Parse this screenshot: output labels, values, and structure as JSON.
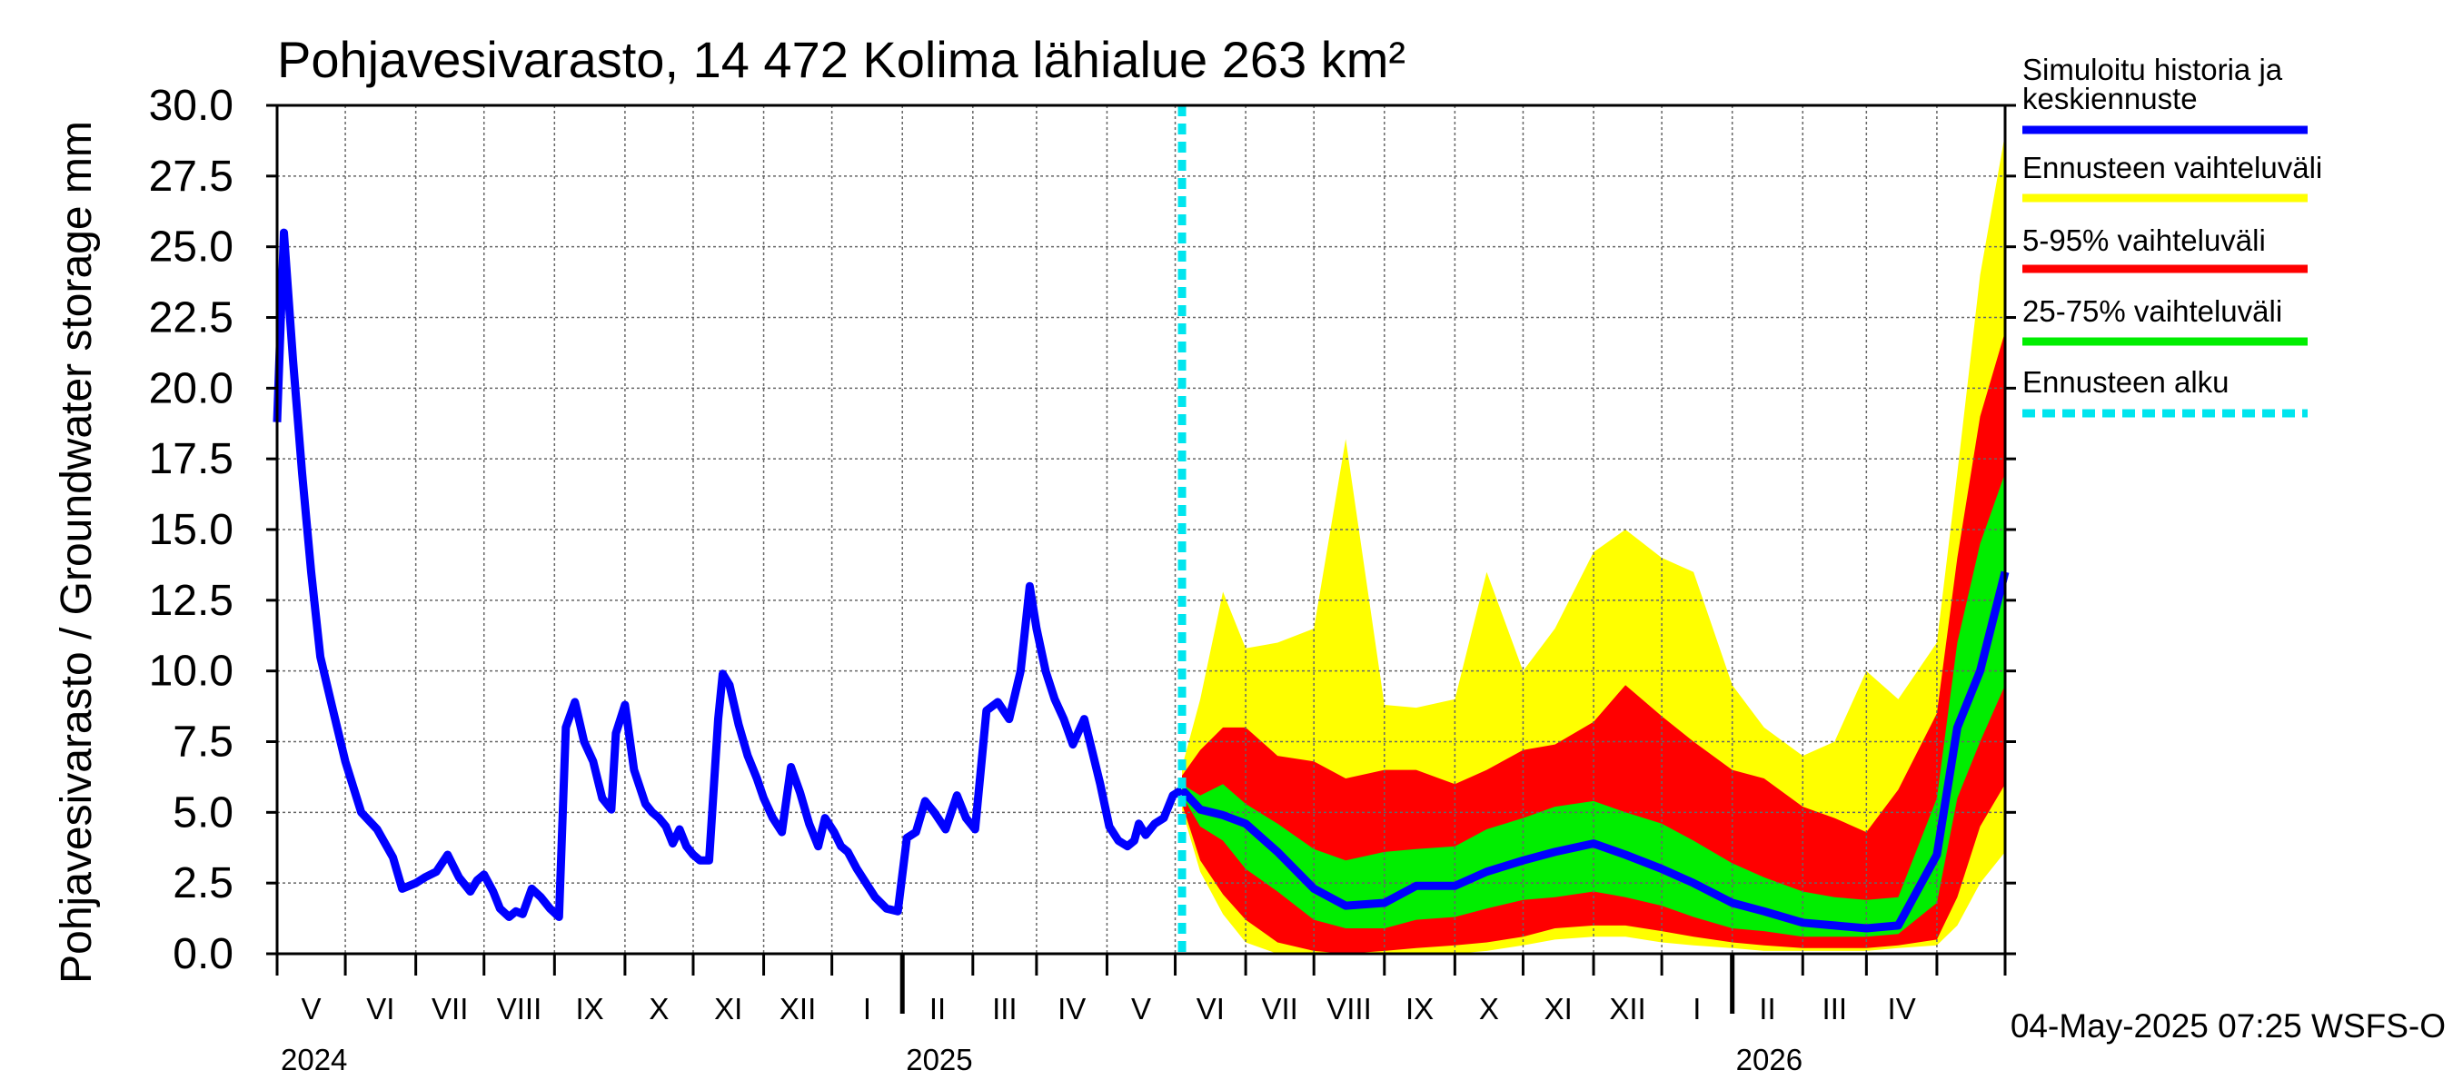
{
  "chart_data": {
    "type": "area",
    "title": "Pohjavesivarasto, 14 472 Kolima lähialue 263 km²",
    "ylabel": "Pohjavesivarasto / Groundwater storage   mm",
    "ylim": [
      0,
      30
    ],
    "yticks": [
      "0.0",
      "2.5",
      "5.0",
      "7.5",
      "10.0",
      "12.5",
      "15.0",
      "17.5",
      "20.0",
      "22.5",
      "25.0",
      "27.5",
      "30.0"
    ],
    "xlim": [
      "2024-04-01",
      "2026-05-01"
    ],
    "month_labels": [
      "V",
      "VI",
      "VII",
      "VIII",
      "IX",
      "X",
      "XI",
      "XII",
      "I",
      "II",
      "III",
      "IV",
      "V",
      "VI",
      "VII",
      "VIII",
      "IX",
      "X",
      "XI",
      "XII",
      "I",
      "II",
      "III",
      "IV"
    ],
    "year_labels": [
      "2024",
      "2025",
      "2026"
    ],
    "forecast_start": "2025-05-04",
    "grid": true,
    "legend_position": "right",
    "legend": [
      {
        "label": "Simuloitu historia ja keskiennuste",
        "color": "#0000ff",
        "style": "solid"
      },
      {
        "label": "Ennusteen vaihteluväli",
        "color": "#ffff00",
        "style": "solid"
      },
      {
        "label": "5-95% vaihteluväli",
        "color": "#ff0000",
        "style": "solid"
      },
      {
        "label": "25-75% vaihteluväli",
        "color": "#00ee00",
        "style": "solid"
      },
      {
        "label": "Ennusteen alku",
        "color": "#00e5ee",
        "style": "dashed"
      }
    ],
    "history": {
      "name": "Simuloitu historia ja keskiennuste",
      "x": [
        "2024-04-01",
        "2024-04-04",
        "2024-04-08",
        "2024-04-12",
        "2024-04-16",
        "2024-04-20",
        "2024-04-25",
        "2024-05-01",
        "2024-05-08",
        "2024-05-15",
        "2024-05-22",
        "2024-05-26",
        "2024-06-01",
        "2024-06-05",
        "2024-06-10",
        "2024-06-15",
        "2024-06-20",
        "2024-06-25",
        "2024-06-28",
        "2024-07-01",
        "2024-07-05",
        "2024-07-08",
        "2024-07-12",
        "2024-07-15",
        "2024-07-18",
        "2024-07-22",
        "2024-07-26",
        "2024-07-30",
        "2024-08-03",
        "2024-08-06",
        "2024-08-10",
        "2024-08-14",
        "2024-08-18",
        "2024-08-22",
        "2024-08-26",
        "2024-08-28",
        "2024-09-01",
        "2024-09-05",
        "2024-09-10",
        "2024-09-13",
        "2024-09-16",
        "2024-09-19",
        "2024-09-22",
        "2024-09-25",
        "2024-09-28",
        "2024-10-01",
        "2024-10-04",
        "2024-10-08",
        "2024-10-12",
        "2024-10-14",
        "2024-10-17",
        "2024-10-21",
        "2024-10-25",
        "2024-10-29",
        "2024-11-01",
        "2024-11-05",
        "2024-11-09",
        "2024-11-13",
        "2024-11-17",
        "2024-11-21",
        "2024-11-25",
        "2024-11-28",
        "2024-12-02",
        "2024-12-05",
        "2024-12-08",
        "2024-12-12",
        "2024-12-16",
        "2024-12-20",
        "2024-12-25",
        "2024-12-30",
        "2025-01-03",
        "2025-01-07",
        "2025-01-11",
        "2025-01-15",
        "2025-01-20",
        "2025-01-25",
        "2025-01-29",
        "2025-02-02",
        "2025-02-07",
        "2025-02-12",
        "2025-02-17",
        "2025-02-22",
        "2025-02-26",
        "2025-03-01",
        "2025-03-05",
        "2025-03-09",
        "2025-03-13",
        "2025-03-17",
        "2025-03-22",
        "2025-03-26",
        "2025-03-29",
        "2025-04-02",
        "2025-04-06",
        "2025-04-10",
        "2025-04-13",
        "2025-04-15",
        "2025-04-18",
        "2025-04-22",
        "2025-04-26",
        "2025-04-30",
        "2025-05-04"
      ],
      "y": [
        18.8,
        25.5,
        21.0,
        17.0,
        13.5,
        10.5,
        8.8,
        6.8,
        5.0,
        4.4,
        3.4,
        2.3,
        2.5,
        2.7,
        2.9,
        3.5,
        2.7,
        2.2,
        2.6,
        2.8,
        2.2,
        1.6,
        1.3,
        1.5,
        1.4,
        2.3,
        2.0,
        1.6,
        1.3,
        8.0,
        8.9,
        7.5,
        6.8,
        5.5,
        5.1,
        7.8,
        8.8,
        6.5,
        5.3,
        5.0,
        4.8,
        4.5,
        3.9,
        4.4,
        3.8,
        3.5,
        3.3,
        3.3,
        8.3,
        9.9,
        9.5,
        8.1,
        7.0,
        6.2,
        5.5,
        4.8,
        4.3,
        6.6,
        5.7,
        4.6,
        3.8,
        4.8,
        4.3,
        3.8,
        3.6,
        3.0,
        2.5,
        2.0,
        1.6,
        1.5,
        4.1,
        4.3,
        5.4,
        5.0,
        4.4,
        5.6,
        4.8,
        4.4,
        8.6,
        8.9,
        8.3,
        10.0,
        13.0,
        11.5,
        10.0,
        9.0,
        8.3,
        7.4,
        8.3,
        7.0,
        6.0,
        4.5,
        4.0,
        3.8,
        4.0,
        4.6,
        4.2,
        4.6,
        4.8,
        5.6,
        5.8
      ]
    },
    "forecast": {
      "x": [
        "2025-05-04",
        "2025-05-12",
        "2025-05-22",
        "2025-06-01",
        "2025-06-15",
        "2025-07-01",
        "2025-07-15",
        "2025-08-01",
        "2025-08-15",
        "2025-09-01",
        "2025-09-15",
        "2025-10-01",
        "2025-10-15",
        "2025-11-01",
        "2025-11-15",
        "2025-12-01",
        "2025-12-15",
        "2026-01-01",
        "2026-01-15",
        "2026-02-01",
        "2026-02-15",
        "2026-03-01",
        "2026-03-15",
        "2026-04-01",
        "2026-04-10",
        "2026-04-20",
        "2026-05-01"
      ],
      "median": [
        5.8,
        5.1,
        4.9,
        4.6,
        3.6,
        2.3,
        1.7,
        1.8,
        2.4,
        2.4,
        2.9,
        3.3,
        3.6,
        3.9,
        3.5,
        3.0,
        2.5,
        1.8,
        1.5,
        1.1,
        1.0,
        0.9,
        1.0,
        3.5,
        8.0,
        10.0,
        13.5
      ],
      "p25": [
        5.6,
        4.5,
        4.0,
        3.0,
        2.2,
        1.2,
        0.9,
        0.9,
        1.2,
        1.3,
        1.6,
        1.9,
        2.0,
        2.2,
        2.0,
        1.7,
        1.3,
        0.9,
        0.8,
        0.6,
        0.6,
        0.6,
        0.7,
        1.8,
        5.5,
        7.5,
        9.5
      ],
      "p75": [
        6.0,
        5.6,
        6.0,
        5.3,
        4.6,
        3.7,
        3.3,
        3.6,
        3.7,
        3.8,
        4.4,
        4.8,
        5.2,
        5.4,
        5.0,
        4.6,
        4.0,
        3.2,
        2.7,
        2.2,
        2.0,
        1.9,
        2.0,
        5.5,
        11.0,
        14.5,
        17.0
      ],
      "p5": [
        5.3,
        3.3,
        2.1,
        1.2,
        0.4,
        0.1,
        0.0,
        0.1,
        0.2,
        0.3,
        0.4,
        0.6,
        0.9,
        1.0,
        1.0,
        0.8,
        0.6,
        0.4,
        0.3,
        0.2,
        0.2,
        0.2,
        0.3,
        0.5,
        2.0,
        4.5,
        6.0
      ],
      "p95": [
        6.3,
        7.2,
        8.0,
        8.0,
        7.0,
        6.8,
        6.2,
        6.5,
        6.5,
        6.0,
        6.5,
        7.2,
        7.4,
        8.2,
        9.5,
        8.4,
        7.5,
        6.5,
        6.2,
        5.2,
        4.8,
        4.3,
        5.8,
        8.5,
        14.0,
        19.0,
        22.0
      ],
      "min": [
        5.1,
        2.9,
        1.4,
        0.4,
        0.0,
        0.0,
        0.0,
        0.0,
        0.0,
        0.0,
        0.1,
        0.3,
        0.5,
        0.6,
        0.6,
        0.4,
        0.3,
        0.2,
        0.1,
        0.1,
        0.1,
        0.1,
        0.2,
        0.3,
        1.0,
        2.5,
        3.6
      ],
      "max": [
        6.6,
        9.0,
        12.8,
        10.8,
        11.0,
        11.5,
        18.2,
        8.8,
        8.7,
        9.0,
        13.5,
        10.0,
        11.5,
        14.2,
        15.0,
        14.0,
        13.5,
        9.5,
        8.0,
        7.0,
        7.5,
        10.0,
        9.0,
        11.0,
        17.0,
        24.0,
        29.0
      ]
    }
  },
  "footer": {
    "timestamp": "04-May-2025 07:25 WSFS-O"
  }
}
